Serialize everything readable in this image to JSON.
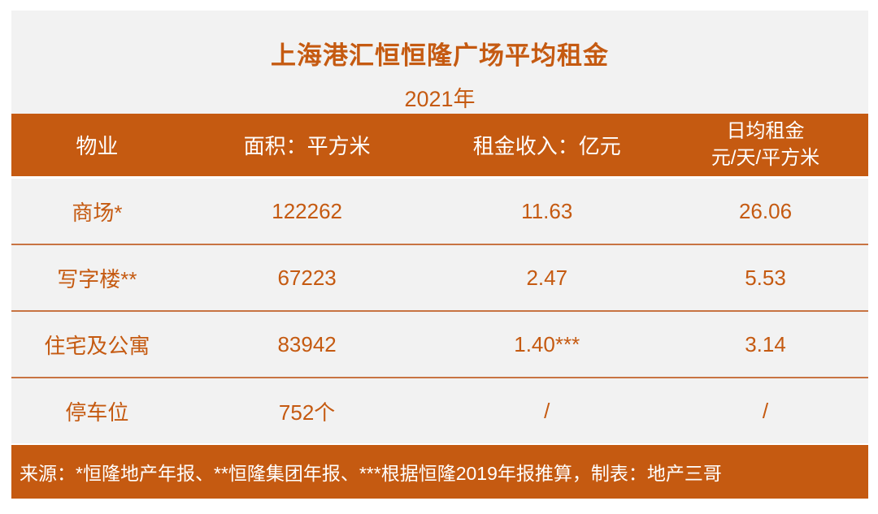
{
  "header": {
    "title": "上海港汇恒恒隆广场平均租金",
    "subtitle": "2021年"
  },
  "table": {
    "columns": [
      {
        "label": "物业"
      },
      {
        "label": "面积：平方米"
      },
      {
        "label": "租金收入：亿元"
      },
      {
        "line1": "日均租金",
        "line2": "元/天/平方米"
      }
    ],
    "rows": [
      {
        "property": "商场*",
        "area": "122262",
        "rent_income": "11.63",
        "daily_rent": "26.06"
      },
      {
        "property": "写字楼**",
        "area": "67223",
        "rent_income": "2.47",
        "daily_rent": "5.53"
      },
      {
        "property": "住宅及公寓",
        "area": "83942",
        "rent_income": "1.40***",
        "daily_rent": "3.14"
      },
      {
        "property": "停车位",
        "area": "752个",
        "rent_income": "/",
        "daily_rent": "/"
      }
    ]
  },
  "footer": {
    "source": "来源：*恒隆地产年报、**恒隆集团年报、***根据恒隆2019年报推算，制表：地产三哥"
  },
  "colors": {
    "accent": "#c55a11",
    "row_background": "#f2f2f2",
    "separator": "#c87443",
    "header_text": "#ffffff",
    "cell_text": "#c55a11"
  },
  "chart_data": {
    "type": "table",
    "title": "上海港汇恒恒隆广场平均租金",
    "subtitle": "2021年",
    "columns": [
      "物业",
      "面积：平方米",
      "租金收入：亿元",
      "日均租金 元/天/平方米"
    ],
    "rows": [
      [
        "商场*",
        "122262",
        "11.63",
        "26.06"
      ],
      [
        "写字楼**",
        "67223",
        "2.47",
        "5.53"
      ],
      [
        "住宅及公寓",
        "83942",
        "1.40***",
        "3.14"
      ],
      [
        "停车位",
        "752个",
        "/",
        "/"
      ]
    ],
    "source_note": "来源：*恒隆地产年报、**恒隆集团年报、***根据恒隆2019年报推算，制表：地产三哥"
  }
}
